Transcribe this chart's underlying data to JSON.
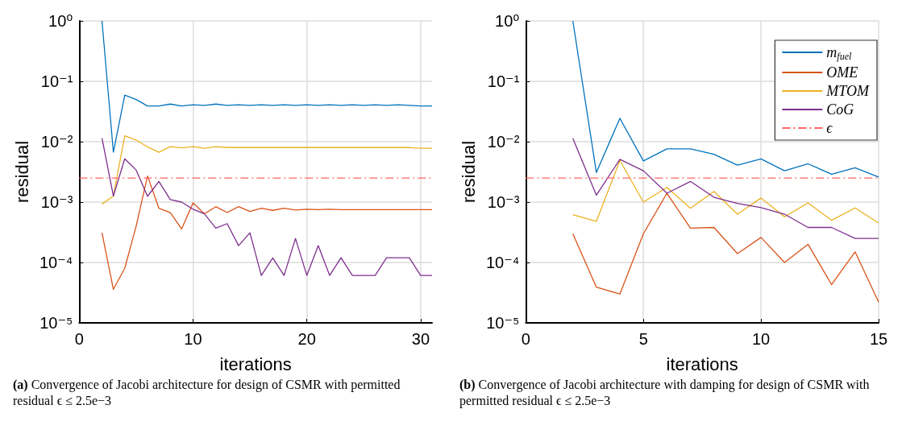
{
  "chart_data": [
    {
      "type": "line",
      "xlabel": "iterations",
      "ylabel": "residual",
      "log": "y",
      "grid": true,
      "legend": false,
      "line_style": "solid",
      "marker": "none",
      "x": [
        2,
        3,
        4,
        5,
        6,
        7,
        8,
        9,
        10,
        11,
        12,
        13,
        14,
        15,
        16,
        17,
        18,
        19,
        20,
        21,
        22,
        23,
        24,
        25,
        26,
        27,
        28,
        29,
        30,
        31
      ],
      "xlim": [
        0,
        31
      ],
      "xticks": [
        0,
        10,
        20,
        30
      ],
      "ylim": [
        1e-05,
        1
      ],
      "yticks": [
        {
          "value": 1e-05,
          "label": "10⁻⁵"
        },
        {
          "value": 0.0001,
          "label": "10⁻⁴"
        },
        {
          "value": 0.001,
          "label": "10⁻³"
        },
        {
          "value": 0.01,
          "label": "10⁻²"
        },
        {
          "value": 0.1,
          "label": "10⁻¹"
        },
        {
          "value": 1,
          "label": "10⁰"
        }
      ],
      "series": [
        {
          "color": "#0072bd",
          "values": [
            1,
            0.0067,
            0.059,
            0.05,
            0.039,
            0.039,
            0.042,
            0.039,
            0.041,
            0.04,
            0.042,
            0.04,
            0.041,
            0.04,
            0.041,
            0.04,
            0.041,
            0.04,
            0.041,
            0.04,
            0.041,
            0.04,
            0.041,
            0.04,
            0.041,
            0.04,
            0.041,
            0.04,
            0.039,
            0.039
          ]
        },
        {
          "color": "#d95319",
          "values": [
            0.00031,
            3.6e-05,
            8e-05,
            0.0004,
            0.0027,
            0.00079,
            0.00067,
            0.00036,
            0.00097,
            0.00064,
            0.00084,
            0.00067,
            0.00084,
            0.0007,
            0.00079,
            0.00073,
            0.00079,
            0.00074,
            0.00076,
            0.00075,
            0.00076,
            0.00075,
            0.00075,
            0.00075,
            0.00075,
            0.00075,
            0.00075,
            0.00075,
            0.00075,
            0.00075
          ]
        },
        {
          "color": "#edb120",
          "values": [
            0.00093,
            0.00126,
            0.0125,
            0.0107,
            0.0082,
            0.0067,
            0.0083,
            0.0079,
            0.0083,
            0.0078,
            0.0083,
            0.008,
            0.008,
            0.008,
            0.008,
            0.008,
            0.008,
            0.008,
            0.008,
            0.008,
            0.008,
            0.008,
            0.008,
            0.008,
            0.008,
            0.008,
            0.008,
            0.008,
            0.0078,
            0.0078
          ]
        },
        {
          "color": "#7e2f8e",
          "values": [
            0.0114,
            0.00126,
            0.0052,
            0.0034,
            0.00125,
            0.0022,
            0.0011,
            0.001,
            0.00076,
            0.00064,
            0.00037,
            0.00044,
            0.00019,
            0.00031,
            6.1e-05,
            0.000119,
            6.1e-05,
            0.00025,
            6.1e-05,
            0.00019,
            6.1e-05,
            0.00012,
            6.1e-05,
            6.1e-05,
            6.1e-05,
            0.00012,
            0.00012,
            0.00012,
            6.1e-05,
            6.1e-05
          ]
        }
      ],
      "ref_lines": [
        {
          "axis": "y",
          "value": 0.0025,
          "label": null,
          "color": "#ff6666",
          "line_style": "dashdot"
        }
      ],
      "annotations": [
        "(a) Convergence of  Jacobi architecture for design of CSMR with permitted residual ϵ ≤ 2.5e−3"
      ]
    },
    {
      "type": "line",
      "xlabel": "iterations",
      "ylabel": "residual",
      "log": "y",
      "grid": true,
      "legend": "top right",
      "line_style": "solid",
      "marker": "none",
      "x": [
        2,
        3,
        4,
        5,
        6,
        7,
        8,
        9,
        10,
        11,
        12,
        13,
        14,
        15
      ],
      "xlim": [
        0,
        15
      ],
      "xticks": [
        0,
        5,
        10,
        15
      ],
      "ylim": [
        1e-05,
        1
      ],
      "yticks": [
        {
          "value": 1e-05,
          "label": "10⁻⁵"
        },
        {
          "value": 0.0001,
          "label": "10⁻⁴"
        },
        {
          "value": 0.001,
          "label": "10⁻³"
        },
        {
          "value": 0.01,
          "label": "10⁻²"
        },
        {
          "value": 0.1,
          "label": "10⁻¹"
        },
        {
          "value": 1,
          "label": "10⁰"
        }
      ],
      "series": [
        {
          "name": "m$_{fuel}$",
          "color": "#0072bd",
          "values": [
            1,
            0.0031,
            0.0244,
            0.0048,
            0.0076,
            0.0076,
            0.0062,
            0.0041,
            0.0052,
            0.0033,
            0.0043,
            0.0029,
            0.0037,
            0.0026
          ]
        },
        {
          "name": "OME",
          "color": "#d95319",
          "values": [
            0.0003,
            3.9e-05,
            3e-05,
            0.0003,
            0.0014,
            0.00037,
            0.00038,
            0.00014,
            0.00026,
            0.0001,
            0.0002,
            4.3e-05,
            0.00015,
            2.2e-05
          ]
        },
        {
          "name": "MTOM",
          "color": "#edb120",
          "values": [
            0.00062,
            0.00048,
            0.0049,
            0.001,
            0.00175,
            0.00079,
            0.0015,
            0.00063,
            0.00117,
            0.00057,
            0.00097,
            0.0005,
            0.0008,
            0.00045
          ]
        },
        {
          "name": "CoG",
          "color": "#7e2f8e",
          "values": [
            0.0114,
            0.0013,
            0.0051,
            0.0033,
            0.0014,
            0.0022,
            0.0012,
            0.00095,
            0.00081,
            0.00063,
            0.00038,
            0.00038,
            0.00025,
            0.00025
          ]
        }
      ],
      "ref_lines": [
        {
          "axis": "y",
          "value": 0.0025,
          "label": "ϵ",
          "color": "#ff6666",
          "line_style": "dashdot"
        }
      ],
      "annotations": [
        "(b) Convergence of Jacobi architecture with damping for design of CSMR with permitted residual ϵ ≤ 2.5e−3"
      ]
    }
  ]
}
